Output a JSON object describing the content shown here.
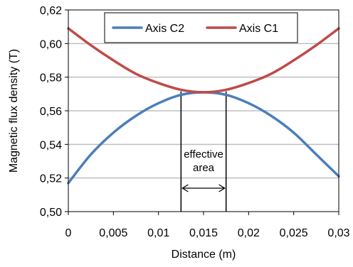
{
  "chart_data": {
    "type": "line",
    "xlabel": "Distance (m)",
    "ylabel": "Magnetic flux density  (T)",
    "xlim": [
      0,
      0.03
    ],
    "ylim": [
      0.5,
      0.62
    ],
    "x_ticks": [
      "0",
      "0,005",
      "0,01",
      "0,015",
      "0,02",
      "0,025",
      "0,03"
    ],
    "x_tick_values": [
      0,
      0.005,
      0.01,
      0.015,
      0.02,
      0.025,
      0.03
    ],
    "y_ticks": [
      "0,50",
      "0,52",
      "0,54",
      "0,56",
      "0,58",
      "0,60",
      "0,62"
    ],
    "y_tick_values": [
      0.5,
      0.52,
      0.54,
      0.56,
      0.58,
      0.6,
      0.62
    ],
    "grid": "horizontal",
    "legend_position": "top-right",
    "series": [
      {
        "name": "Axis C2",
        "color": "#4a7ebb",
        "x": [
          0,
          0.0025,
          0.005,
          0.0075,
          0.01,
          0.0125,
          0.015,
          0.0175,
          0.02,
          0.0225,
          0.025,
          0.0275,
          0.03
        ],
        "y": [
          0.517,
          0.534,
          0.547,
          0.557,
          0.5645,
          0.5695,
          0.571,
          0.5695,
          0.5645,
          0.557,
          0.547,
          0.534,
          0.521
        ]
      },
      {
        "name": "Axis C1",
        "color": "#be4b48",
        "x": [
          0,
          0.0025,
          0.005,
          0.0075,
          0.01,
          0.0125,
          0.015,
          0.0175,
          0.02,
          0.0225,
          0.025,
          0.0275,
          0.03
        ],
        "y": [
          0.609,
          0.599,
          0.59,
          0.582,
          0.5765,
          0.5725,
          0.571,
          0.5725,
          0.5765,
          0.582,
          0.59,
          0.599,
          0.609
        ]
      }
    ],
    "annotation": {
      "text_line1": "effective",
      "text_line2": "area",
      "x_start": 0.0125,
      "x_end": 0.0175
    }
  }
}
